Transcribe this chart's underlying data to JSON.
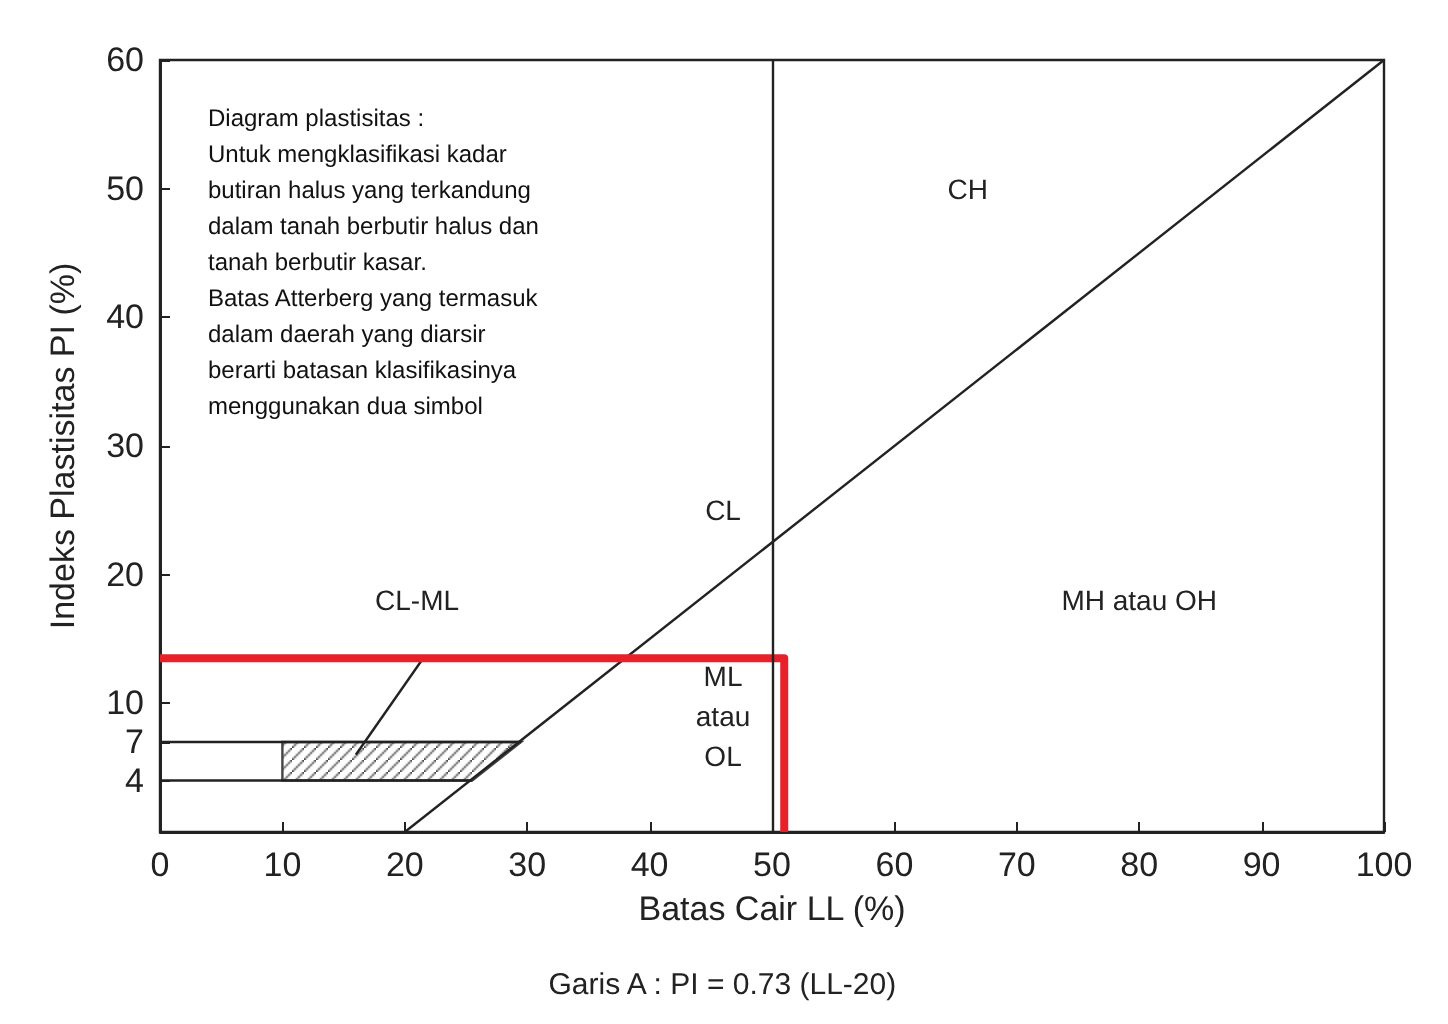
{
  "chart_data": {
    "type": "line",
    "xlabel": "Batas Cair LL (%)",
    "ylabel": "Indeks Plastisitas PI (%)",
    "xlim": [
      0,
      100
    ],
    "xticks": [
      0,
      10,
      20,
      30,
      40,
      50,
      60,
      70,
      80,
      90,
      100
    ],
    "ylim": [
      0,
      60
    ],
    "yticks": [
      {
        "value": 0,
        "label": null
      },
      {
        "value": 4,
        "label": "4"
      },
      {
        "value": 7,
        "label": "7"
      },
      10,
      20,
      30,
      40,
      50,
      60
    ],
    "grid": false,
    "marker": "none",
    "line_style": "solid",
    "series": [
      {
        "color": "#222222",
        "x": [
          20,
          100
        ],
        "values": [
          0,
          60
        ]
      },
      {
        "type": "line",
        "color": "#222222",
        "x": [
          0,
          29.5
        ],
        "values": [
          7,
          7
        ]
      },
      {
        "type": "line",
        "color": "#222222",
        "x": [
          0,
          25.5
        ],
        "values": [
          4,
          4
        ]
      },
      {
        "type": "area",
        "color": "#444444",
        "x": [
          10,
          10,
          29.5,
          25.5
        ],
        "values": [
          4,
          7,
          7,
          4
        ]
      },
      {
        "type": "line",
        "color": "#222222",
        "x": [
          21.5,
          16
        ],
        "values": [
          13.5,
          6
        ]
      },
      {
        "type": "line",
        "color": "#e8202a",
        "x": [
          0,
          51,
          51
        ],
        "values": [
          13.5,
          13.5,
          0
        ]
      }
    ],
    "ref_lines": [
      {
        "axis": "x",
        "value": 50,
        "label": null,
        "color": "#222222"
      }
    ],
    "annotations": [
      "Diagram plastisitas :\nUntuk mengklasifikasi kadar\nbutiran halus yang terkandung\ndalam tanah berbutir halus dan\ntanah berbutir kasar.\nBatas Atterberg yang termasuk\ndalam daerah yang diarsir\nberarti batasan klasifikasinya\nmenggunakan dua simbol",
      "CH",
      "CL",
      "CL-ML",
      "ML\natau\nOL",
      "MH atau OH",
      "Garis A : PI = 0.73 (LL-20)"
    ]
  }
}
